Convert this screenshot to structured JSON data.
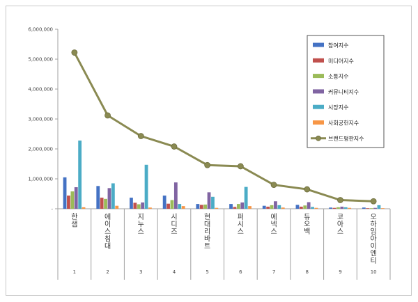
{
  "chart_data": {
    "type": "bar",
    "categories": [
      "1",
      "2",
      "3",
      "4",
      "5",
      "6",
      "7",
      "8",
      "9",
      "10"
    ],
    "category_names": [
      "한샘",
      "에이스침대",
      "지누스",
      "시디즈",
      "현대리바트",
      "퍼시스",
      "에넥스",
      "듀오백",
      "코아스",
      "오하임아이엔티"
    ],
    "ylim": [
      0,
      6000000
    ],
    "yticks": [
      "-",
      "1,000,000",
      "2,000,000",
      "3,000,000",
      "4,000,000",
      "5,000,000",
      "6,000,000"
    ],
    "grid": false,
    "legend_position": "right",
    "series": [
      {
        "name": "참여지수",
        "kind": "bar",
        "color": "#4472c4",
        "values": [
          1050000,
          760000,
          370000,
          440000,
          160000,
          160000,
          100000,
          130000,
          40000,
          40000
        ]
      },
      {
        "name": "미디어지수",
        "kind": "bar",
        "color": "#c0504d",
        "values": [
          440000,
          370000,
          200000,
          170000,
          130000,
          60000,
          70000,
          70000,
          30000,
          20000
        ]
      },
      {
        "name": "소통지수",
        "kind": "bar",
        "color": "#9bbb59",
        "values": [
          580000,
          330000,
          150000,
          290000,
          140000,
          160000,
          120000,
          110000,
          50000,
          20000
        ]
      },
      {
        "name": "커뮤니티지수",
        "kind": "bar",
        "color": "#8064a2",
        "values": [
          720000,
          690000,
          210000,
          880000,
          550000,
          210000,
          250000,
          220000,
          70000,
          30000
        ]
      },
      {
        "name": "시장지수",
        "kind": "bar",
        "color": "#4bacc6",
        "values": [
          2280000,
          850000,
          1470000,
          160000,
          400000,
          730000,
          120000,
          60000,
          50000,
          120000
        ]
      },
      {
        "name": "사회공헌지수",
        "kind": "bar",
        "color": "#f79646",
        "values": [
          50000,
          100000,
          40000,
          90000,
          30000,
          90000,
          40000,
          30000,
          30000,
          20000
        ]
      },
      {
        "name": "브랜드평판지수",
        "kind": "line",
        "color": "#8a8a52",
        "values": [
          5220000,
          3120000,
          2430000,
          2080000,
          1460000,
          1420000,
          800000,
          650000,
          290000,
          250000
        ]
      }
    ]
  }
}
